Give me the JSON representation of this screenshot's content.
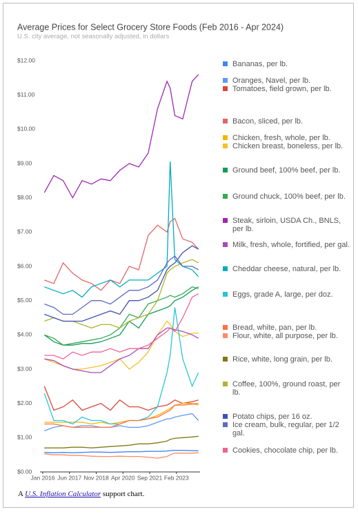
{
  "chart_data": {
    "type": "line",
    "title": "Average Prices for Select Grocery Store Foods (Feb 2016 - Apr 2024)",
    "subtitle": "U.S. city average, not seasonally adjusted, in dollars",
    "x": [
      "2016-02",
      "2016-08",
      "2017-02",
      "2017-08",
      "2018-02",
      "2018-08",
      "2019-02",
      "2019-08",
      "2020-02",
      "2020-08",
      "2021-02",
      "2021-08",
      "2022-02",
      "2022-08",
      "2022-10",
      "2023-01",
      "2023-06",
      "2023-12",
      "2024-04"
    ],
    "xlim": [
      "2016-01",
      "2024-05"
    ],
    "xticks": [
      {
        "value": "2016-01",
        "label": "Jan 2016"
      },
      {
        "value": "2017-06",
        "label": "Jun 2017"
      },
      {
        "value": "2018-11",
        "label": "Nov 2018"
      },
      {
        "value": "2020-04",
        "label": "Apr 2020"
      },
      {
        "value": "2021-09",
        "label": "Sep 2021"
      },
      {
        "value": "2023-02",
        "label": "Feb 2023"
      }
    ],
    "ylim": [
      0,
      12
    ],
    "yticks": [
      {
        "value": 0,
        "label": "$0.00"
      },
      {
        "value": 1,
        "label": "$1.00"
      },
      {
        "value": 2,
        "label": "$2.00"
      },
      {
        "value": 3,
        "label": "$3.00"
      },
      {
        "value": 4,
        "label": "$4.00"
      },
      {
        "value": 5,
        "label": "$5.00"
      },
      {
        "value": 6,
        "label": "$6.00"
      },
      {
        "value": 7,
        "label": "$7.00"
      },
      {
        "value": 8,
        "label": "$8.00"
      },
      {
        "value": 9,
        "label": "$9.00"
      },
      {
        "value": 10,
        "label": "$10.00"
      },
      {
        "value": 11,
        "label": "$11.00"
      },
      {
        "value": 12,
        "label": "$12.00"
      }
    ],
    "grid": false,
    "legend": "right",
    "series": [
      {
        "name": "Bananas, per lb.",
        "color": "#4285f4",
        "values": [
          0.57,
          0.56,
          0.57,
          0.56,
          0.57,
          0.58,
          0.58,
          0.57,
          0.58,
          0.59,
          0.59,
          0.6,
          0.6,
          0.61,
          0.62,
          0.63,
          0.63,
          0.62,
          0.62
        ]
      },
      {
        "name": "Oranges, Navel, per lb.",
        "color": "#5e97f6",
        "values": [
          1.2,
          1.3,
          1.35,
          1.3,
          1.35,
          1.35,
          1.3,
          1.3,
          1.35,
          1.3,
          1.3,
          1.35,
          1.45,
          1.55,
          1.55,
          1.6,
          1.65,
          1.7,
          1.5
        ]
      },
      {
        "name": "Tomatoes, field grown, per lb.",
        "color": "#db4437",
        "values": [
          2.5,
          1.8,
          1.9,
          2.1,
          1.8,
          1.9,
          2.0,
          1.8,
          2.1,
          1.9,
          1.9,
          1.8,
          1.9,
          1.95,
          2.0,
          2.1,
          2.0,
          2.05,
          2.1
        ]
      },
      {
        "name": "Bacon, sliced, per lb.",
        "color": "#e06666",
        "values": [
          5.6,
          5.5,
          6.1,
          5.8,
          5.6,
          5.5,
          5.3,
          5.6,
          5.5,
          6.0,
          5.9,
          6.9,
          7.2,
          7.0,
          7.3,
          7.4,
          6.8,
          6.7,
          6.5
        ]
      },
      {
        "name": "Chicken, fresh, whole, per lb.",
        "color": "#f4b400",
        "values": [
          1.45,
          1.45,
          1.45,
          1.45,
          1.45,
          1.4,
          1.45,
          1.4,
          1.45,
          1.5,
          1.5,
          1.55,
          1.65,
          1.8,
          1.85,
          1.95,
          2.0,
          2.0,
          1.95
        ]
      },
      {
        "name": "Chicken breast, boneless, per lb.",
        "color": "#f6c026",
        "values": [
          3.3,
          3.2,
          3.1,
          3.0,
          3.0,
          3.05,
          3.1,
          3.2,
          3.3,
          3.0,
          3.2,
          3.5,
          4.0,
          4.4,
          4.3,
          4.1,
          3.95,
          4.05,
          4.05
        ]
      },
      {
        "name": "Ground beef, 100% beef, per lb.",
        "color": "#0f9d58",
        "values": [
          4.0,
          3.8,
          3.7,
          3.7,
          3.75,
          3.75,
          3.8,
          3.9,
          4.0,
          4.4,
          4.2,
          4.6,
          4.7,
          4.8,
          4.85,
          5.0,
          5.1,
          5.3,
          5.4
        ]
      },
      {
        "name": "Ground chuck, 100% beef, per lb.",
        "color": "#34a853",
        "values": [
          4.0,
          3.9,
          3.7,
          3.75,
          3.8,
          3.85,
          3.9,
          4.0,
          4.2,
          4.6,
          4.5,
          4.9,
          5.0,
          5.1,
          5.15,
          5.1,
          5.2,
          5.4,
          5.35
        ]
      },
      {
        "name": "Steak, sirloin, USDA Ch., BNLS, per lb.",
        "color": "#9c27b0",
        "values": [
          8.15,
          8.65,
          8.5,
          8.0,
          8.5,
          8.4,
          8.55,
          8.5,
          8.8,
          9.0,
          8.9,
          9.3,
          10.6,
          11.4,
          11.2,
          10.4,
          10.3,
          11.4,
          11.6
        ]
      },
      {
        "name": "Milk, fresh, whole, fortified, per gal.",
        "color": "#ab47bc",
        "values": [
          3.3,
          3.25,
          3.1,
          3.0,
          2.95,
          2.9,
          2.9,
          3.1,
          3.3,
          3.4,
          3.6,
          3.6,
          4.0,
          4.2,
          4.2,
          4.15,
          4.1,
          4.0,
          3.9
        ]
      },
      {
        "name": "Cheddar cheese, natural, per lb.",
        "color": "#00acc1",
        "values": [
          5.4,
          5.3,
          5.2,
          5.3,
          5.1,
          5.4,
          5.5,
          5.6,
          5.4,
          5.6,
          5.6,
          5.6,
          5.8,
          6.0,
          9.06,
          6.2,
          6.0,
          5.9,
          5.7
        ]
      },
      {
        "name": "Eggs, grade A, large, per doz.",
        "color": "#26c6da",
        "values": [
          2.3,
          1.5,
          1.5,
          1.4,
          1.6,
          1.5,
          1.5,
          1.4,
          1.4,
          1.5,
          1.5,
          1.6,
          1.9,
          2.9,
          3.4,
          4.8,
          3.3,
          2.5,
          2.9
        ]
      },
      {
        "name": "Bread, white, pan, per lb.",
        "color": "#ff7043",
        "values": [
          1.4,
          1.4,
          1.35,
          1.3,
          1.3,
          1.3,
          1.3,
          1.3,
          1.4,
          1.5,
          1.5,
          1.55,
          1.6,
          1.75,
          1.8,
          1.95,
          1.95,
          1.98,
          2.0
        ]
      },
      {
        "name": "Flour, white, all purpose, per lb.",
        "color": "#ff8a65",
        "values": [
          0.53,
          0.5,
          0.5,
          0.48,
          0.48,
          0.46,
          0.45,
          0.45,
          0.46,
          0.45,
          0.45,
          0.43,
          0.4,
          0.45,
          0.5,
          0.55,
          0.55,
          0.55,
          0.56
        ]
      },
      {
        "name": "Rice, white, long grain, per lb.",
        "color": "#827717",
        "values": [
          0.7,
          0.7,
          0.7,
          0.72,
          0.72,
          0.7,
          0.72,
          0.74,
          0.76,
          0.78,
          0.82,
          0.82,
          0.85,
          0.9,
          0.95,
          0.98,
          1.0,
          1.02,
          1.04
        ]
      },
      {
        "name": "Coffee, 100%, ground roast, per lb.",
        "color": "#afb42b",
        "values": [
          4.4,
          4.5,
          4.4,
          4.4,
          4.3,
          4.2,
          4.3,
          4.3,
          4.2,
          4.4,
          4.5,
          4.6,
          5.0,
          5.8,
          5.9,
          6.0,
          6.1,
          6.2,
          6.1
        ]
      },
      {
        "name": "Potato chips, per 16 oz.",
        "color": "#3f51b5",
        "values": [
          4.6,
          4.5,
          4.4,
          4.4,
          4.4,
          4.5,
          4.6,
          4.7,
          4.6,
          5.0,
          5.0,
          5.1,
          5.3,
          5.9,
          6.0,
          6.1,
          6.4,
          6.6,
          6.5
        ]
      },
      {
        "name": "Ice cream, bulk, regular, per 1/2 gal.",
        "color": "#5c6bc0",
        "values": [
          4.9,
          4.8,
          4.6,
          4.6,
          4.8,
          5.0,
          5.0,
          4.9,
          5.1,
          5.3,
          5.3,
          5.4,
          5.6,
          6.1,
          6.2,
          6.3,
          6.0,
          6.0,
          5.9
        ]
      },
      {
        "name": "Cookies, chocolate chip, per lb.",
        "color": "#f06292",
        "values": [
          3.4,
          3.4,
          3.3,
          3.5,
          3.4,
          3.5,
          3.5,
          3.6,
          3.5,
          3.6,
          3.6,
          3.7,
          3.9,
          4.1,
          4.2,
          4.1,
          4.5,
          5.1,
          5.2
        ]
      }
    ]
  },
  "footer": {
    "prefix": "A ",
    "link": "U.S. Inflation Calculator",
    "suffix": " support chart."
  }
}
